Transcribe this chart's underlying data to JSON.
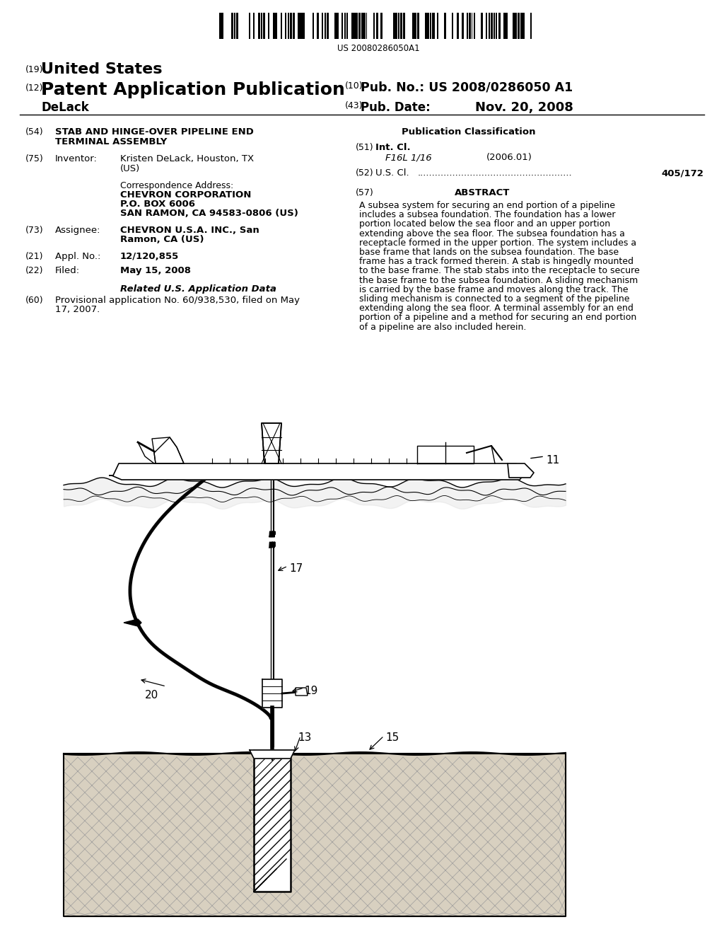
{
  "background_color": "#ffffff",
  "barcode_text": "US 20080286050A1",
  "header_19": "(19)",
  "header_19_text": "United States",
  "header_12": "(12)",
  "header_12_text": "Patent Application Publication",
  "header_name": "DeLack",
  "header_10_label": "(10)",
  "header_10_text": "Pub. No.:",
  "header_10_value": "US 2008/0286050 A1",
  "header_43_label": "(43)",
  "header_43_text": "Pub. Date:",
  "header_43_value": "Nov. 20, 2008",
  "field54_label": "(54)",
  "field54_text1": "STAB AND HINGE-OVER PIPELINE END",
  "field54_text2": "TERMINAL ASSEMBLY",
  "field75_label": "(75)",
  "field75_key": "Inventor:",
  "field75_val1": "Kristen DeLack, Houston, TX",
  "field75_val2": "(US)",
  "corr_label": "Correspondence Address:",
  "corr_line1": "CHEVRON CORPORATION",
  "corr_line2": "P.O. BOX 6006",
  "corr_line3": "SAN RAMON, CA 94583-0806 (US)",
  "field73_label": "(73)",
  "field73_key": "Assignee:",
  "field73_val1": "CHEVRON U.S.A. INC., San",
  "field73_val2": "Ramon, CA (US)",
  "field21_label": "(21)",
  "field21_key": "Appl. No.:",
  "field21_val": "12/120,855",
  "field22_label": "(22)",
  "field22_key": "Filed:",
  "field22_val": "May 15, 2008",
  "related_header": "Related U.S. Application Data",
  "field60_label": "(60)",
  "field60_text1": "Provisional application No. 60/938,530, filed on May",
  "field60_text2": "17, 2007.",
  "pub_class_header": "Publication Classification",
  "field51_label": "(51)",
  "field51_key": "Int. Cl.",
  "field51_val1": "F16L 1/16",
  "field51_val2": "(2006.01)",
  "field52_label": "(52)",
  "field52_key": "U.S. Cl.",
  "field52_dots": ".....................................................",
  "field52_val": "405/172",
  "field57_label": "(57)",
  "field57_header": "ABSTRACT",
  "abstract_lines": [
    "A subsea system for securing an end portion of a pipeline",
    "includes a subsea foundation. The foundation has a lower",
    "portion located below the sea floor and an upper portion",
    "extending above the sea floor. The subsea foundation has a",
    "receptacle formed in the upper portion. The system includes a",
    "base frame that lands on the subsea foundation. The base",
    "frame has a track formed therein. A stab is hingedly mounted",
    "to the base frame. The stab stabs into the receptacle to secure",
    "the base frame to the subsea foundation. A sliding mechanism",
    "is carried by the base frame and moves along the track. The",
    "sliding mechanism is connected to a segment of the pipeline",
    "extending along the sea floor. A terminal assembly for an end",
    "portion of a pipeline and a method for securing an end portion",
    "of a pipeline are also included herein."
  ],
  "label_11": "11",
  "label_13": "13",
  "label_15": "15",
  "label_17": "17",
  "label_19": "19",
  "label_20": "20"
}
